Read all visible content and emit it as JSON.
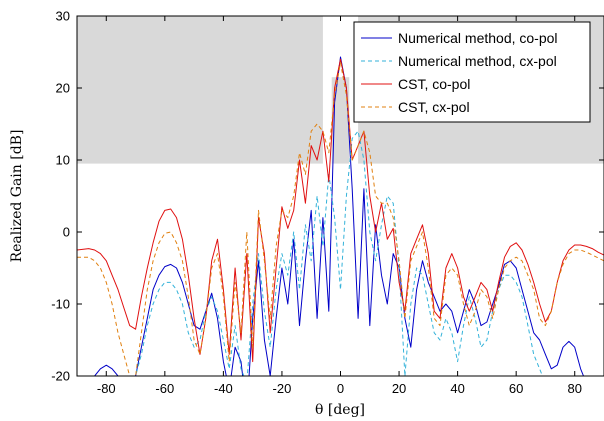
{
  "chart_data": {
    "type": "line",
    "xlabel": "θ [deg]",
    "ylabel": "Realized Gain [dB]",
    "xlim": [
      -90,
      90
    ],
    "ylim": [
      -20,
      30
    ],
    "xticks": [
      -80,
      -60,
      -40,
      -20,
      0,
      20,
      40,
      60,
      80
    ],
    "yticks": [
      -20,
      -10,
      0,
      10,
      20,
      30
    ],
    "grid": false,
    "legend_position": "top-right",
    "mask_regions": [
      {
        "x": [
          -90,
          -6
        ],
        "y": [
          9.5,
          30
        ]
      },
      {
        "x": [
          -3,
          3
        ],
        "y": [
          9.5,
          21.5
        ]
      },
      {
        "x": [
          6,
          90
        ],
        "y": [
          9.5,
          30
        ]
      }
    ],
    "mask_color": "#d9d9d9",
    "series": [
      {
        "name": "Numerical method, co-pol",
        "color": "#0000c8",
        "dash": "solid",
        "x": [
          -90,
          -86,
          -84,
          -82,
          -80,
          -78,
          -76,
          -74,
          -72,
          -70,
          -68,
          -66,
          -64,
          -62,
          -60,
          -58,
          -56,
          -54,
          -52,
          -50,
          -48,
          -46,
          -44,
          -42,
          -40,
          -38,
          -36,
          -34,
          -32,
          -30,
          -28,
          -26,
          -24,
          -22,
          -20,
          -18,
          -16,
          -14,
          -12,
          -10,
          -8,
          -6,
          -4,
          -2,
          0,
          2,
          4,
          6,
          8,
          10,
          12,
          14,
          16,
          18,
          20,
          22,
          24,
          26,
          28,
          30,
          32,
          34,
          36,
          38,
          40,
          42,
          44,
          46,
          48,
          50,
          52,
          54,
          56,
          58,
          60,
          62,
          64,
          66,
          68,
          70,
          72,
          74,
          76,
          78,
          80,
          82,
          84,
          86,
          88,
          90
        ],
        "y": [
          -20,
          -20,
          -20,
          -19,
          -18.5,
          -19,
          -20,
          -20,
          -20,
          -20,
          -16,
          -12,
          -8,
          -6,
          -4.8,
          -4.5,
          -5,
          -7,
          -10,
          -13,
          -13.5,
          -11,
          -8.5,
          -12,
          -18,
          -22,
          -16,
          -18,
          -25,
          -12,
          -4,
          -15,
          -20,
          -12,
          -5,
          -10,
          -1,
          -13,
          -4,
          3,
          -12,
          2,
          -11,
          18,
          24.3,
          20,
          6,
          -12,
          6,
          -13,
          1,
          -6,
          -10,
          -3,
          -5,
          -12,
          -16,
          -8,
          -4,
          -7,
          -9,
          -11,
          -10,
          -11,
          -14,
          -11,
          -8,
          -10,
          -13,
          -12.5,
          -10,
          -7.5,
          -4.5,
          -4,
          -5,
          -8,
          -11,
          -14,
          -15,
          -17,
          -19,
          -18.5,
          -16,
          -15.2,
          -16,
          -19,
          -21,
          -22,
          -23,
          -24
        ]
      },
      {
        "name": "Numerical method, cx-pol",
        "color": "#33b2d9",
        "dash": "dashed",
        "x": [
          -90,
          -86,
          -84,
          -82,
          -80,
          -78,
          -76,
          -74,
          -72,
          -70,
          -68,
          -66,
          -64,
          -62,
          -60,
          -58,
          -56,
          -54,
          -52,
          -50,
          -48,
          -46,
          -44,
          -42,
          -40,
          -38,
          -36,
          -34,
          -32,
          -30,
          -28,
          -26,
          -24,
          -22,
          -20,
          -18,
          -16,
          -14,
          -12,
          -10,
          -8,
          -6,
          -4,
          -2,
          0,
          2,
          4,
          6,
          8,
          10,
          12,
          14,
          16,
          18,
          20,
          22,
          24,
          26,
          28,
          30,
          32,
          34,
          36,
          38,
          40,
          42,
          44,
          46,
          48,
          50,
          52,
          54,
          56,
          58,
          60,
          62,
          64,
          66,
          68,
          70,
          72,
          74,
          76,
          78,
          80,
          82,
          84,
          86,
          88,
          90
        ],
        "y": [
          -25,
          -25,
          -24,
          -24,
          -23,
          -24,
          -25,
          -24,
          -22,
          -20,
          -17,
          -13,
          -10,
          -8,
          -7,
          -7,
          -8,
          -10,
          -14,
          -16,
          -15,
          -11,
          -9,
          -11,
          -15,
          -19,
          -13,
          -19,
          -21,
          -10,
          -3,
          -11,
          -16,
          -8,
          -3,
          -6,
          0,
          -8,
          1,
          -4,
          5,
          -2,
          8,
          2,
          -8,
          5,
          13,
          14,
          10,
          0,
          -4,
          1,
          5,
          4,
          -5,
          -20,
          -10,
          -5,
          -6,
          -10,
          -14,
          -15,
          -12,
          -14,
          -18,
          -13,
          -9,
          -12,
          -16,
          -15,
          -11,
          -8,
          -6,
          -6,
          -7,
          -9,
          -13,
          -17,
          -19,
          -21,
          -22,
          -24,
          -22,
          -21,
          -22,
          -24,
          -25,
          -25,
          -25,
          -26
        ]
      },
      {
        "name": "CST, co-pol",
        "color": "#e01010",
        "dash": "solid",
        "x": [
          -90,
          -86,
          -84,
          -82,
          -80,
          -78,
          -76,
          -74,
          -72,
          -70,
          -68,
          -66,
          -64,
          -62,
          -60,
          -58,
          -56,
          -54,
          -52,
          -50,
          -48,
          -46,
          -44,
          -42,
          -40,
          -38,
          -36,
          -34,
          -32,
          -30,
          -28,
          -26,
          -24,
          -22,
          -20,
          -18,
          -16,
          -14,
          -12,
          -10,
          -8,
          -6,
          -4,
          -2,
          0,
          2,
          4,
          6,
          8,
          10,
          12,
          14,
          16,
          18,
          20,
          22,
          24,
          26,
          28,
          30,
          32,
          34,
          36,
          38,
          40,
          42,
          44,
          46,
          48,
          50,
          52,
          54,
          56,
          58,
          60,
          62,
          64,
          66,
          68,
          70,
          72,
          74,
          76,
          78,
          80,
          82,
          84,
          86,
          88,
          90
        ],
        "y": [
          -2.5,
          -2.3,
          -2.5,
          -3,
          -4,
          -6,
          -8,
          -10.5,
          -13,
          -13.5,
          -9,
          -5,
          -1.5,
          1.5,
          3,
          3.2,
          2,
          -1,
          -6,
          -12,
          -17,
          -12,
          -4,
          -1,
          -8,
          -17,
          -5,
          -15,
          -3,
          -18,
          2,
          -3,
          -14,
          -5,
          3.5,
          0.5,
          3,
          10,
          4,
          12,
          10,
          14,
          7,
          20,
          24,
          20,
          10,
          12,
          14,
          5,
          0,
          4,
          -1,
          0.5,
          -7,
          -11,
          -3,
          -1,
          1,
          -3,
          -11,
          -12,
          -5,
          -3,
          -5,
          -9,
          -11,
          -9,
          -7,
          -8,
          -11,
          -7,
          -3.5,
          -2,
          -1.5,
          -2.5,
          -4.5,
          -7,
          -10,
          -12.5,
          -11,
          -7,
          -4,
          -2.5,
          -1.8,
          -1.8,
          -2,
          -2.3,
          -2.8,
          -3.2
        ]
      },
      {
        "name": "CST, cx-pol",
        "color": "#e08010",
        "dash": "dashed",
        "x": [
          -90,
          -86,
          -84,
          -82,
          -80,
          -78,
          -76,
          -74,
          -72,
          -70,
          -68,
          -66,
          -64,
          -62,
          -60,
          -58,
          -56,
          -54,
          -52,
          -50,
          -48,
          -46,
          -44,
          -42,
          -40,
          -38,
          -36,
          -34,
          -32,
          -30,
          -28,
          -26,
          -24,
          -22,
          -20,
          -18,
          -16,
          -14,
          -12,
          -10,
          -8,
          -6,
          -4,
          -2,
          0,
          2,
          4,
          6,
          8,
          10,
          12,
          14,
          16,
          18,
          20,
          22,
          24,
          26,
          28,
          30,
          32,
          34,
          36,
          38,
          40,
          42,
          44,
          46,
          48,
          50,
          52,
          54,
          56,
          58,
          60,
          62,
          64,
          66,
          68,
          70,
          72,
          74,
          76,
          78,
          80,
          82,
          84,
          86,
          88,
          90
        ],
        "y": [
          -3.5,
          -3.5,
          -4,
          -5,
          -7,
          -10,
          -14,
          -17,
          -20,
          -20,
          -14,
          -8,
          -4,
          -1.5,
          -0.2,
          0,
          -1.5,
          -4,
          -9,
          -15,
          -17,
          -12,
          -5,
          -3,
          -9,
          -18,
          -7,
          -14,
          0,
          -16,
          3,
          -4,
          -12,
          -2,
          3,
          2,
          5,
          11,
          8,
          14,
          15,
          14,
          11,
          19,
          23.5,
          19,
          10,
          12,
          14,
          11,
          5,
          4,
          4,
          2,
          -4,
          -12,
          -4,
          -2,
          0,
          -5,
          -12,
          -13,
          -6,
          -5,
          -6,
          -10,
          -13,
          -11,
          -8,
          -9,
          -12,
          -8,
          -5,
          -4,
          -3.5,
          -4,
          -6,
          -8,
          -12,
          -13,
          -11,
          -7,
          -4.5,
          -3,
          -2.5,
          -2.5,
          -2.8,
          -3.2,
          -3.6,
          -4
        ]
      }
    ]
  }
}
